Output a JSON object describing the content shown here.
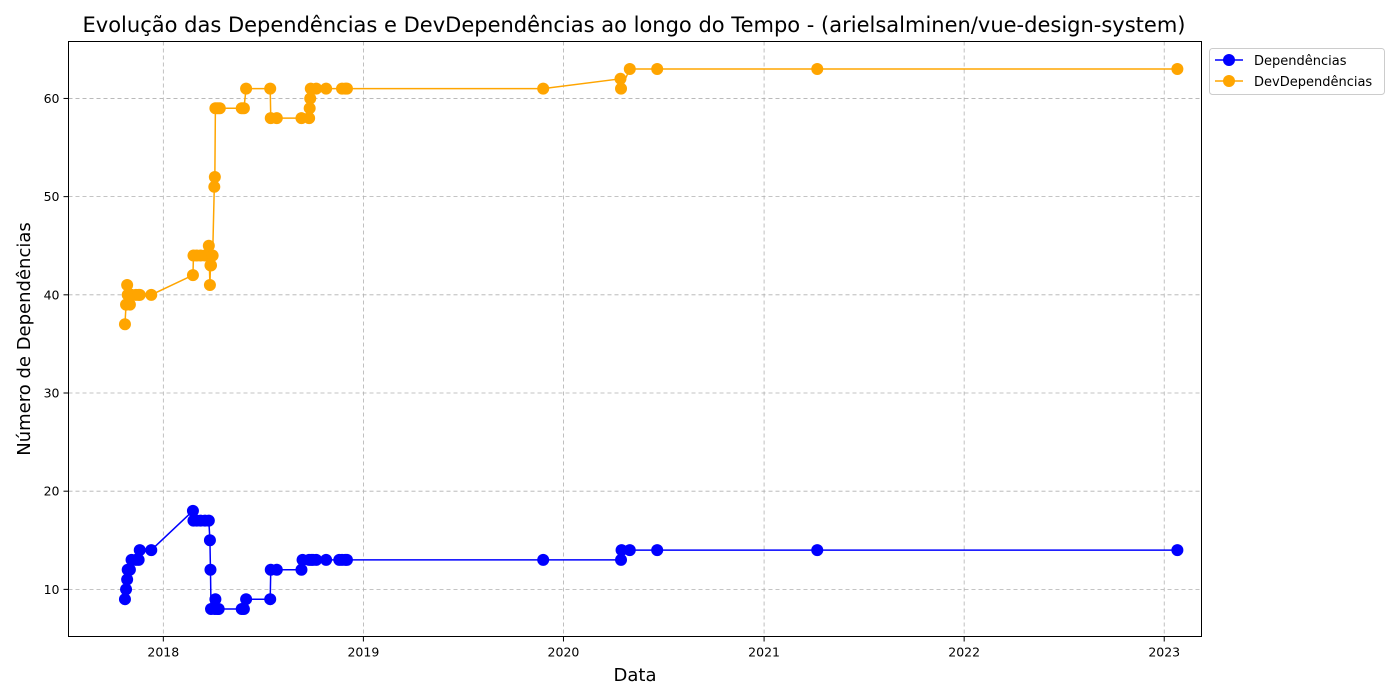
{
  "chart_data": {
    "type": "line",
    "title": "Evolução das Dependências e DevDependências ao longo do Tempo - (arielsalminen/vue-design-system)",
    "xlabel": "Data",
    "ylabel": "Número de Dependências",
    "xlim": [
      "2017-07-12",
      "2023-03-10"
    ],
    "ylim": [
      5.2,
      65.8
    ],
    "x_ticks": [
      "2018",
      "2019",
      "2020",
      "2021",
      "2022",
      "2023"
    ],
    "x_tick_dates": [
      "2018-01-01",
      "2019-01-01",
      "2020-01-01",
      "2021-01-01",
      "2022-01-01",
      "2023-01-01"
    ],
    "y_ticks": [
      10,
      20,
      30,
      40,
      50,
      60
    ],
    "grid": true,
    "legend_position": "upper right outside",
    "series": [
      {
        "name": "Dependências",
        "color": "#0000ff",
        "points": [
          [
            "2017-10-23",
            9
          ],
          [
            "2017-10-25",
            10
          ],
          [
            "2017-10-27",
            11
          ],
          [
            "2017-10-28",
            12
          ],
          [
            "2017-11-01",
            12
          ],
          [
            "2017-11-04",
            13
          ],
          [
            "2017-11-12",
            13
          ],
          [
            "2017-11-17",
            13
          ],
          [
            "2017-11-19",
            14
          ],
          [
            "2017-12-10",
            14
          ],
          [
            "2018-02-24",
            18
          ],
          [
            "2018-02-25",
            17
          ],
          [
            "2018-03-03",
            17
          ],
          [
            "2018-03-10",
            17
          ],
          [
            "2018-03-18",
            17
          ],
          [
            "2018-03-25",
            17
          ],
          [
            "2018-03-27",
            15
          ],
          [
            "2018-03-28",
            12
          ],
          [
            "2018-03-29",
            8
          ],
          [
            "2018-04-05",
            8
          ],
          [
            "2018-04-06",
            9
          ],
          [
            "2018-04-10",
            8
          ],
          [
            "2018-04-12",
            8
          ],
          [
            "2018-05-24",
            8
          ],
          [
            "2018-05-28",
            8
          ],
          [
            "2018-06-01",
            9
          ],
          [
            "2018-07-15",
            9
          ],
          [
            "2018-07-16",
            12
          ],
          [
            "2018-07-27",
            12
          ],
          [
            "2018-09-10",
            12
          ],
          [
            "2018-09-12",
            13
          ],
          [
            "2018-09-24",
            13
          ],
          [
            "2018-09-28",
            13
          ],
          [
            "2018-10-01",
            13
          ],
          [
            "2018-10-07",
            13
          ],
          [
            "2018-10-25",
            13
          ],
          [
            "2018-11-18",
            13
          ],
          [
            "2018-11-23",
            13
          ],
          [
            "2018-11-29",
            13
          ],
          [
            "2018-12-02",
            13
          ],
          [
            "2019-11-25",
            13
          ],
          [
            "2020-04-15",
            13
          ],
          [
            "2020-04-16",
            14
          ],
          [
            "2020-05-01",
            14
          ],
          [
            "2020-06-20",
            14
          ],
          [
            "2021-04-08",
            14
          ],
          [
            "2023-01-25",
            14
          ]
        ]
      },
      {
        "name": "DevDependências",
        "color": "#ffa500",
        "points": [
          [
            "2017-10-23",
            37
          ],
          [
            "2017-10-25",
            39
          ],
          [
            "2017-10-27",
            41
          ],
          [
            "2017-10-28",
            40
          ],
          [
            "2017-11-01",
            39
          ],
          [
            "2017-11-04",
            40
          ],
          [
            "2017-11-12",
            40
          ],
          [
            "2017-11-17",
            40
          ],
          [
            "2017-11-19",
            40
          ],
          [
            "2017-12-10",
            40
          ],
          [
            "2018-02-24",
            42
          ],
          [
            "2018-02-25",
            44
          ],
          [
            "2018-03-03",
            44
          ],
          [
            "2018-03-10",
            44
          ],
          [
            "2018-03-18",
            44
          ],
          [
            "2018-03-25",
            45
          ],
          [
            "2018-03-27",
            41
          ],
          [
            "2018-03-28",
            43
          ],
          [
            "2018-03-29",
            43
          ],
          [
            "2018-04-01",
            44
          ],
          [
            "2018-04-04",
            51
          ],
          [
            "2018-04-05",
            52
          ],
          [
            "2018-04-06",
            59
          ],
          [
            "2018-04-10",
            59
          ],
          [
            "2018-04-14",
            59
          ],
          [
            "2018-05-24",
            59
          ],
          [
            "2018-05-28",
            59
          ],
          [
            "2018-06-01",
            61
          ],
          [
            "2018-07-15",
            61
          ],
          [
            "2018-07-16",
            58
          ],
          [
            "2018-07-27",
            58
          ],
          [
            "2018-09-10",
            58
          ],
          [
            "2018-09-24",
            58
          ],
          [
            "2018-09-25",
            59
          ],
          [
            "2018-09-26",
            60
          ],
          [
            "2018-09-27",
            61
          ],
          [
            "2018-10-07",
            61
          ],
          [
            "2018-10-25",
            61
          ],
          [
            "2018-11-23",
            61
          ],
          [
            "2018-11-29",
            61
          ],
          [
            "2018-12-02",
            61
          ],
          [
            "2019-11-25",
            61
          ],
          [
            "2020-04-14",
            62
          ],
          [
            "2020-04-15",
            61
          ],
          [
            "2020-05-01",
            63
          ],
          [
            "2020-06-20",
            63
          ],
          [
            "2021-04-08",
            63
          ],
          [
            "2023-01-25",
            63
          ]
        ]
      }
    ]
  }
}
